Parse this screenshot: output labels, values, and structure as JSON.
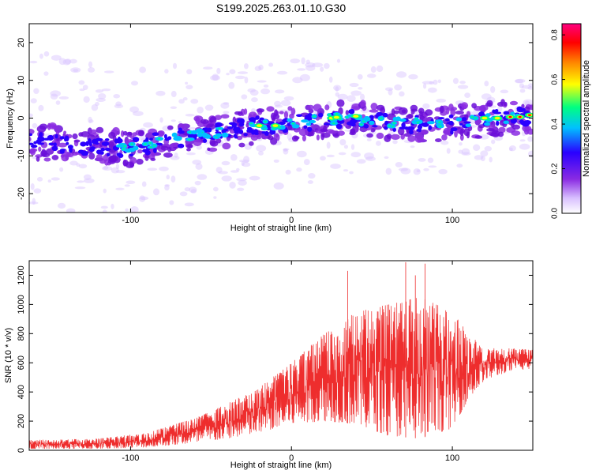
{
  "title": "S199.2025.263.01.10.G30",
  "colors": {
    "snr_line": "#ee2d2d",
    "colormap": [
      "#ffffff",
      "#d8c0ff",
      "#8a2be2",
      "#2a00ff",
      "#00c0ff",
      "#00ff80",
      "#ffff00",
      "#ff8000",
      "#ff0000",
      "#ff0080"
    ]
  },
  "chart_data": [
    {
      "type": "heatmap",
      "name": "spectrogram",
      "title": "S199.2025.263.01.10.G30",
      "xlabel": "Height of straight line (km)",
      "ylabel": "Frequency (Hz)",
      "xlim": [
        -163,
        150
      ],
      "ylim": [
        -25,
        25
      ],
      "xticks": [
        -100,
        0,
        100
      ],
      "yticks": [
        -20,
        -10,
        0,
        10,
        20
      ],
      "ridge_center_hz": [
        {
          "x": -150,
          "y": -6.5
        },
        {
          "x": -120,
          "y": -7.5
        },
        {
          "x": -100,
          "y": -8
        },
        {
          "x": -80,
          "y": -6
        },
        {
          "x": -50,
          "y": -4
        },
        {
          "x": -20,
          "y": -2
        },
        {
          "x": 0,
          "y": -1.5
        },
        {
          "x": 30,
          "y": 0
        },
        {
          "x": 60,
          "y": -1
        },
        {
          "x": 90,
          "y": -2
        },
        {
          "x": 110,
          "y": -1
        },
        {
          "x": 130,
          "y": 0
        },
        {
          "x": 148,
          "y": 0.5
        }
      ],
      "colorbar": {
        "label": "Normalized spectral amplitude",
        "range": [
          0.0,
          0.85
        ],
        "ticks": [
          "0.0",
          "0.2",
          "0.4",
          "0.6",
          "0.8"
        ]
      }
    },
    {
      "type": "line",
      "name": "snr",
      "xlabel": "Height of straight line (km)",
      "ylabel": "SNR (10 * v/v)",
      "xlim": [
        -163,
        150
      ],
      "ylim": [
        0,
        1300
      ],
      "xticks": [
        -100,
        0,
        100
      ],
      "yticks": [
        0,
        200,
        400,
        600,
        800,
        1000,
        1200
      ],
      "trend": [
        {
          "x": -163,
          "lo": 10,
          "hi": 70
        },
        {
          "x": -120,
          "lo": 10,
          "hi": 80
        },
        {
          "x": -90,
          "lo": 20,
          "hi": 120
        },
        {
          "x": -60,
          "lo": 50,
          "hi": 220
        },
        {
          "x": -40,
          "lo": 80,
          "hi": 320
        },
        {
          "x": -20,
          "lo": 120,
          "hi": 430
        },
        {
          "x": 0,
          "lo": 180,
          "hi": 600
        },
        {
          "x": 20,
          "lo": 200,
          "hi": 800
        },
        {
          "x": 40,
          "lo": 180,
          "hi": 950
        },
        {
          "x": 60,
          "lo": 100,
          "hi": 1000
        },
        {
          "x": 80,
          "lo": 80,
          "hi": 1050
        },
        {
          "x": 100,
          "lo": 150,
          "hi": 950
        },
        {
          "x": 110,
          "lo": 350,
          "hi": 800
        },
        {
          "x": 120,
          "lo": 480,
          "hi": 700
        },
        {
          "x": 135,
          "lo": 540,
          "hi": 700
        },
        {
          "x": 150,
          "lo": 560,
          "hi": 690
        }
      ],
      "peaks": [
        {
          "x": 71,
          "y": 1290
        },
        {
          "x": 77,
          "y": 1200
        },
        {
          "x": 83,
          "y": 1280
        },
        {
          "x": 35,
          "y": 1230
        }
      ]
    }
  ]
}
